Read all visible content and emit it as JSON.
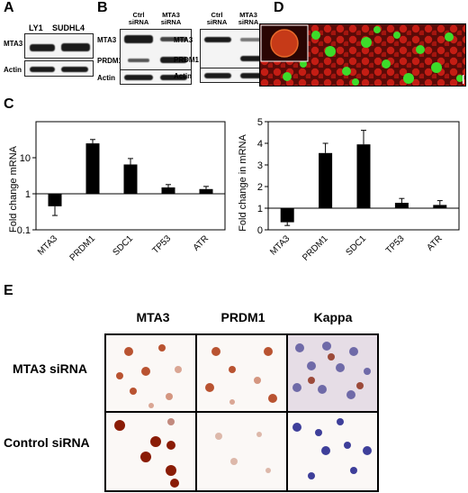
{
  "panels": {
    "A": {
      "label": "A",
      "lanes": [
        "LY1",
        "SUDHL4"
      ],
      "rows": [
        "MTA3",
        "Actin"
      ]
    },
    "B": {
      "label": "B",
      "left": {
        "lanes": [
          "Ctrl siRNA",
          "MTA3 siRNA"
        ],
        "rows": [
          "MTA3",
          "PRDM1",
          "Actin"
        ]
      },
      "right": {
        "lanes": [
          "Ctrl siRNA",
          "MTA3 siRNA"
        ],
        "rows": [
          "MTA3",
          "PRDM1",
          "Actin"
        ]
      }
    },
    "C": {
      "label": "C"
    },
    "D": {
      "label": "D"
    },
    "E": {
      "label": "E",
      "columns": [
        "MTA3",
        "PRDM1",
        "Kappa"
      ],
      "rows": [
        "MTA3 siRNA",
        "Control siRNA"
      ]
    }
  },
  "chart_data": [
    {
      "type": "bar",
      "categories": [
        "MTA3",
        "PRDM1",
        "SDC1",
        "TP53",
        "ATR"
      ],
      "values": [
        0.45,
        25,
        6.5,
        1.5,
        1.35
      ],
      "errors": [
        0.2,
        7,
        3,
        0.3,
        0.25
      ],
      "ylabel": "Fold change mRNA",
      "yscale": "log",
      "ylim": [
        0.1,
        100
      ],
      "yticks": [
        "0.1",
        "1",
        "10"
      ]
    },
    {
      "type": "bar",
      "categories": [
        "MTA3",
        "PRDM1",
        "SDC1",
        "TP53",
        "ATR"
      ],
      "values": [
        0.35,
        3.55,
        3.95,
        1.25,
        1.15
      ],
      "errors": [
        0.15,
        0.45,
        0.65,
        0.2,
        0.2
      ],
      "ylabel": "Fold change in mRNA",
      "yscale": "linear",
      "ylim": [
        0,
        5
      ],
      "yticks": [
        "0",
        "1",
        "2",
        "3",
        "4",
        "5"
      ]
    }
  ]
}
